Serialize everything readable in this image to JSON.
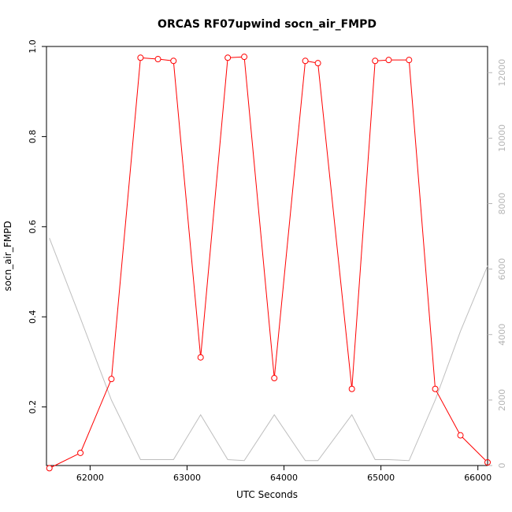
{
  "chart_data": {
    "type": "line",
    "title": "ORCAS RF07upwind socn_air_FMPD",
    "xlabel": "UTC Seconds",
    "ylabel": "socn_air_FMPD",
    "xlim": [
      61550,
      66100
    ],
    "ylim": [
      0.07,
      1.0
    ],
    "y2lim": [
      0,
      12800
    ],
    "x_ticks": [
      62000,
      63000,
      64000,
      65000,
      66000
    ],
    "y_ticks": [
      0.2,
      0.4,
      0.6,
      0.8,
      1.0
    ],
    "y2_ticks": [
      0,
      2000,
      4000,
      6000,
      8000,
      10000,
      12000
    ],
    "grid": false,
    "series": [
      {
        "axis": "left",
        "color": "#ff0000",
        "marker": "circle",
        "x": [
          61580,
          61900,
          62220,
          62520,
          62700,
          62860,
          63140,
          63420,
          63590,
          63900,
          64220,
          64350,
          64700,
          64940,
          65080,
          65290,
          65560,
          65820,
          66100
        ],
        "values": [
          0.064,
          0.098,
          0.262,
          0.975,
          0.972,
          0.968,
          0.31,
          0.975,
          0.977,
          0.264,
          0.968,
          0.963,
          0.24,
          0.968,
          0.97,
          0.97,
          0.24,
          0.137,
          0.077
        ]
      },
      {
        "axis": "right",
        "color": "#bebebe",
        "marker": "none",
        "x": [
          61580,
          61900,
          62220,
          62520,
          62700,
          62860,
          63140,
          63420,
          63590,
          63900,
          64220,
          64350,
          64700,
          64940,
          65080,
          65290,
          65560,
          65820,
          66100
        ],
        "values": [
          6950,
          4500,
          2000,
          180,
          180,
          180,
          1550,
          180,
          150,
          1550,
          150,
          150,
          1550,
          180,
          180,
          150,
          2000,
          4100,
          6100
        ]
      }
    ]
  }
}
